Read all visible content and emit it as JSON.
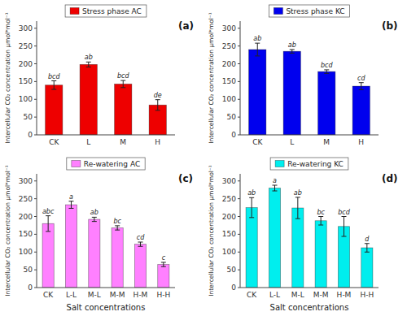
{
  "chart_data": [
    {
      "type": "bar",
      "categories": [
        "CK",
        "L",
        "M",
        "H"
      ],
      "series": [
        {
          "name": "Stress phase AC",
          "color": "#EE0000",
          "values": [
            140,
            198,
            143,
            84
          ],
          "errors": [
            12,
            7,
            10,
            15
          ],
          "sig_labels": [
            "bcd",
            "ab",
            "bcd",
            "de"
          ]
        }
      ],
      "ylabel": "Intercellular CO₂ concentration μmol*mol⁻¹",
      "ylim": [
        0,
        320
      ],
      "yticks": [
        0,
        50,
        100,
        150,
        200,
        250,
        300
      ],
      "grid": false,
      "legend": "top",
      "annotations": [
        {
          "text": "(a)"
        }
      ]
    },
    {
      "type": "bar",
      "categories": [
        "CK",
        "L",
        "M",
        "H"
      ],
      "series": [
        {
          "name": "Stress phase KC",
          "color": "#0000EE",
          "values": [
            240,
            235,
            178,
            137
          ],
          "errors": [
            18,
            5,
            5,
            10
          ],
          "sig_labels": [
            "ab",
            "ab",
            "bcd",
            "cd"
          ]
        }
      ],
      "ylabel": "Intercellular CO₂ concentration μmol*mol⁻¹",
      "ylim": [
        0,
        320
      ],
      "yticks": [
        0,
        50,
        100,
        150,
        200,
        250,
        300
      ],
      "grid": false,
      "legend": "top",
      "annotations": [
        {
          "text": "(b)"
        }
      ]
    },
    {
      "type": "bar",
      "categories": [
        "CK",
        "L-L",
        "M-L",
        "M-M",
        "H-M",
        "H-H"
      ],
      "series": [
        {
          "name": "Re-watering AC",
          "color": "#FF80FF",
          "values": [
            180,
            233,
            192,
            168,
            122,
            65
          ],
          "errors": [
            22,
            10,
            6,
            6,
            6,
            6
          ],
          "sig_labels": [
            "abc",
            "a",
            "ab",
            "bc",
            "cd",
            "c"
          ]
        }
      ],
      "ylabel": "Intercellular CO₂ concentration μmol*mol⁻¹",
      "xlabel": "Salt concentrations",
      "ylim": [
        0,
        320
      ],
      "yticks": [
        0,
        50,
        100,
        150,
        200,
        250,
        300
      ],
      "grid": false,
      "legend": "top",
      "annotations": [
        {
          "text": "(c)"
        }
      ]
    },
    {
      "type": "bar",
      "categories": [
        "CK",
        "L-L",
        "M-L",
        "M-M",
        "H-M",
        "H-H"
      ],
      "series": [
        {
          "name": "Re-watering KC",
          "color": "#00EEEE",
          "values": [
            225,
            280,
            224,
            188,
            172,
            112
          ],
          "errors": [
            28,
            8,
            30,
            12,
            28,
            12
          ],
          "sig_labels": [
            "ab",
            "a",
            "ab",
            "bc",
            "bcd",
            "d"
          ]
        }
      ],
      "ylabel": "Intercellular CO₂ concentration μmol*mol⁻¹",
      "xlabel": "Salt concentrations",
      "ylim": [
        0,
        320
      ],
      "yticks": [
        0,
        50,
        100,
        150,
        200,
        250,
        300
      ],
      "grid": false,
      "legend": "top",
      "annotations": [
        {
          "text": "(d)"
        }
      ]
    }
  ]
}
